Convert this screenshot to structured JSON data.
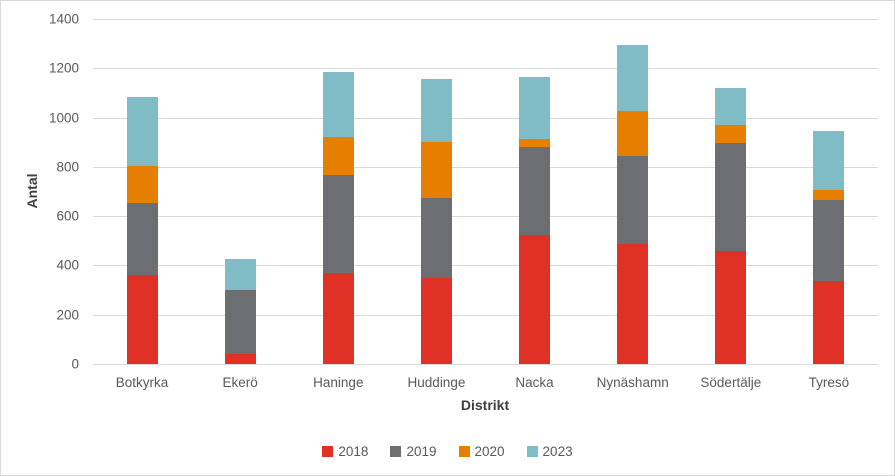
{
  "chart_data": {
    "type": "bar",
    "stacked": true,
    "title": "",
    "xlabel": "Distrikt",
    "ylabel": "Antal",
    "categories": [
      "Botkyrka",
      "Ekerö",
      "Haninge",
      "Huddinge",
      "Nacka",
      "Nynäshamn",
      "Södertälje",
      "Tyresö"
    ],
    "series": [
      {
        "name": "2018",
        "color": "#E03127",
        "values": [
          360,
          40,
          370,
          350,
          525,
          485,
          460,
          335
        ]
      },
      {
        "name": "2019",
        "color": "#6D6E71",
        "values": [
          295,
          260,
          395,
          325,
          355,
          360,
          435,
          330
        ]
      },
      {
        "name": "2020",
        "color": "#E67E00",
        "values": [
          150,
          0,
          155,
          225,
          35,
          180,
          75,
          40
        ]
      },
      {
        "name": "2023",
        "color": "#80BCC6",
        "values": [
          280,
          125,
          265,
          255,
          250,
          270,
          150,
          240
        ]
      }
    ],
    "totals": [
      1085,
      425,
      1185,
      1155,
      1165,
      1295,
      1120,
      945
    ],
    "ylim": [
      0,
      1400
    ],
    "y_ticks": [
      0,
      200,
      400,
      600,
      800,
      1000,
      1200,
      1400
    ],
    "grid": true,
    "legend_position": "bottom",
    "colors": {
      "gridline": "#D9D9D9",
      "border": "#D9D9D9",
      "axis_text": "#595959",
      "axis_title_text": "#404040",
      "background": "#FFFFFF"
    }
  }
}
